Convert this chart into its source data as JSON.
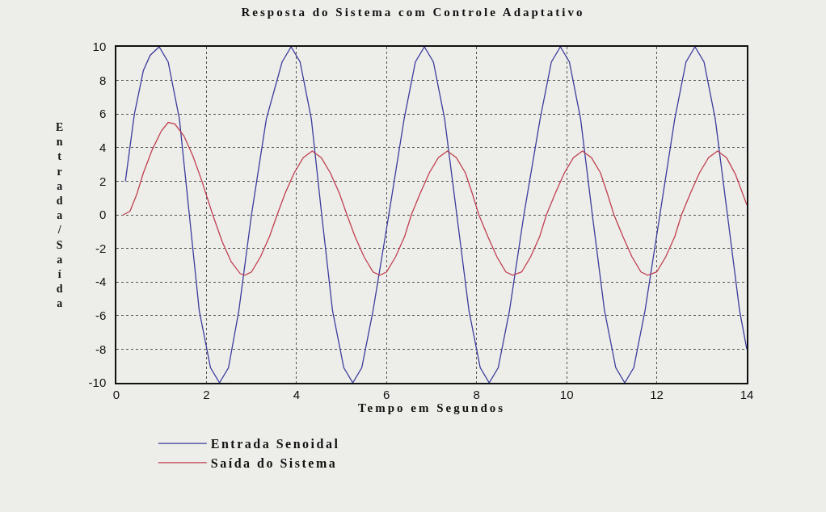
{
  "chart_data": {
    "type": "line",
    "title": "Resposta do Sistema com Controle Adaptativo",
    "xlabel": "Tempo em Segundos",
    "ylabel": "Entrada/Saída",
    "xlim": [
      0,
      14
    ],
    "xticks": [
      0,
      2,
      4,
      6,
      8,
      10,
      12,
      14
    ],
    "ylim": [
      -10,
      10
    ],
    "yticks": [
      -10,
      -8,
      -6,
      -4,
      -2,
      0,
      2,
      4,
      6,
      8,
      10
    ],
    "grid": true,
    "legend": "bottom",
    "marker": "none",
    "line_style": "solid",
    "series": [
      {
        "name": "Entrada Senoidal",
        "color": "#3c3c9c",
        "x": [
          0.2,
          0.4,
          0.6,
          0.75,
          0.95,
          1.15,
          1.4,
          1.62,
          1.84,
          2.09,
          2.29,
          2.49,
          2.72,
          3.0,
          3.33,
          3.68,
          3.88,
          4.08,
          4.33,
          4.56,
          4.8,
          5.05,
          5.25,
          5.45,
          5.7,
          6.05,
          6.39,
          6.64,
          6.84,
          7.04,
          7.29,
          7.56,
          7.83,
          8.08,
          8.28,
          8.48,
          8.73,
          9.05,
          9.41,
          9.66,
          9.86,
          10.06,
          10.31,
          10.57,
          10.84,
          11.09,
          11.29,
          11.49,
          11.74,
          12.07,
          12.4,
          12.65,
          12.85,
          13.05,
          13.3,
          13.57,
          13.84,
          14
        ],
        "values": [
          2,
          6,
          8.6,
          9.5,
          10,
          9.1,
          5.7,
          0,
          -5.7,
          -9.1,
          -10,
          -9.1,
          -5.7,
          0,
          5.7,
          9.1,
          10,
          9.1,
          5.7,
          0,
          -5.7,
          -9.1,
          -10,
          -9.1,
          -5.7,
          0,
          5.7,
          9.1,
          10,
          9.1,
          5.7,
          0,
          -5.7,
          -9.1,
          -10,
          -9.1,
          -5.7,
          0,
          5.7,
          9.1,
          10,
          9.1,
          5.7,
          0,
          -5.7,
          -9.1,
          -10,
          -9.1,
          -5.7,
          0,
          5.7,
          9.1,
          10,
          9.1,
          5.7,
          0,
          -5.7,
          -8
        ]
      },
      {
        "name": "Saída do Sistema",
        "color": "#c04050",
        "x": [
          0.15,
          0.3,
          0.45,
          0.6,
          0.8,
          1.0,
          1.15,
          1.3,
          1.5,
          1.7,
          1.9,
          2.14,
          2.35,
          2.55,
          2.75,
          2.85,
          3.0,
          3.2,
          3.4,
          3.57,
          3.75,
          3.95,
          4.15,
          4.35,
          4.55,
          4.75,
          4.95,
          5.12,
          5.3,
          5.5,
          5.7,
          5.85,
          6.0,
          6.2,
          6.4,
          6.55,
          6.75,
          6.95,
          7.15,
          7.35,
          7.55,
          7.75,
          7.9,
          8.05,
          8.25,
          8.45,
          8.65,
          8.8,
          9.0,
          9.2,
          9.4,
          9.55,
          9.75,
          9.95,
          10.15,
          10.35,
          10.55,
          10.75,
          10.9,
          11.05,
          11.25,
          11.45,
          11.65,
          11.8,
          12.0,
          12.2,
          12.4,
          12.55,
          12.75,
          12.95,
          13.15,
          13.35,
          13.55,
          13.75,
          14
        ],
        "values": [
          0,
          0.2,
          1.2,
          2.5,
          3.9,
          5.0,
          5.5,
          5.4,
          4.7,
          3.5,
          2,
          0,
          -1.6,
          -2.8,
          -3.5,
          -3.6,
          -3.4,
          -2.5,
          -1.3,
          0,
          1.3,
          2.5,
          3.4,
          3.8,
          3.4,
          2.5,
          1.3,
          0,
          -1.3,
          -2.5,
          -3.4,
          -3.6,
          -3.4,
          -2.5,
          -1.3,
          0,
          1.3,
          2.5,
          3.4,
          3.8,
          3.4,
          2.5,
          1.3,
          0,
          -1.3,
          -2.5,
          -3.4,
          -3.6,
          -3.4,
          -2.5,
          -1.3,
          0,
          1.3,
          2.5,
          3.4,
          3.8,
          3.4,
          2.5,
          1.3,
          0,
          -1.3,
          -2.5,
          -3.4,
          -3.6,
          -3.4,
          -2.5,
          -1.3,
          0,
          1.3,
          2.5,
          3.4,
          3.8,
          3.4,
          2.4,
          0.6
        ]
      }
    ]
  }
}
